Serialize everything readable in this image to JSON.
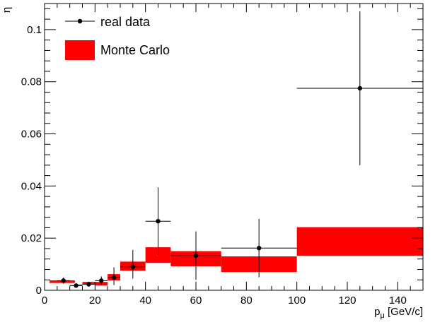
{
  "chart_data": {
    "type": "scatter",
    "title": "",
    "xlabel_main": "p",
    "xlabel_sub": "μ",
    "xlabel_unit": " [GeV/c]",
    "ylabel": "η",
    "xlim": [
      0,
      150
    ],
    "ylim": [
      0,
      0.11
    ],
    "x_ticks": [
      0,
      20,
      40,
      60,
      80,
      100,
      120,
      140
    ],
    "y_ticks": [
      0,
      0.02,
      0.04,
      0.06,
      0.08,
      0.1
    ],
    "y_tick_labels": [
      "0",
      "0.02",
      "0.04",
      "0.06",
      "0.08",
      "0.1"
    ],
    "grid": false,
    "legend_position": "top-left",
    "legend": {
      "data_label": "real data",
      "mc_label": "Monte Carlo"
    },
    "colors": {
      "mc_fill": "#ff0000",
      "data_marker": "#000000"
    },
    "series": [
      {
        "name": "real data",
        "kind": "points_with_errors",
        "points": [
          {
            "x": 7.5,
            "xerr": 2.5,
            "y": 0.0037,
            "yerr_low": 0.0012,
            "yerr_high": 0.0012
          },
          {
            "x": 12.5,
            "xerr": 2.5,
            "y": 0.0018,
            "yerr_low": 0.0008,
            "yerr_high": 0.0008
          },
          {
            "x": 17.5,
            "xerr": 2.5,
            "y": 0.0023,
            "yerr_low": 0.0009,
            "yerr_high": 0.0009
          },
          {
            "x": 22.5,
            "xerr": 2.5,
            "y": 0.0037,
            "yerr_low": 0.0016,
            "yerr_high": 0.0016
          },
          {
            "x": 27.5,
            "xerr": 2.5,
            "y": 0.0048,
            "yerr_low": 0.0028,
            "yerr_high": 0.004
          },
          {
            "x": 35,
            "xerr": 5,
            "y": 0.009,
            "yerr_low": 0.0045,
            "yerr_high": 0.0065
          },
          {
            "x": 45,
            "xerr": 5,
            "y": 0.0265,
            "yerr_low": 0.013,
            "yerr_high": 0.013
          },
          {
            "x": 60,
            "xerr": 10,
            "y": 0.0133,
            "yerr_low": 0.0093,
            "yerr_high": 0.0093
          },
          {
            "x": 85,
            "xerr": 15,
            "y": 0.0162,
            "yerr_low": 0.0112,
            "yerr_high": 0.0112
          },
          {
            "x": 125,
            "xerr": 25,
            "y": 0.0775,
            "yerr_low": 0.0295,
            "yerr_high": 0.0295
          }
        ]
      },
      {
        "name": "Monte Carlo",
        "kind": "error_bands",
        "bins": [
          {
            "x_low": 2,
            "x_high": 12,
            "y_low": 0.0028,
            "y_high": 0.0038
          },
          {
            "x_low": 12,
            "x_high": 15,
            "y_low": 0.0018,
            "y_high": 0.0022
          },
          {
            "x_low": 15,
            "x_high": 20,
            "y_low": 0.0022,
            "y_high": 0.0032
          },
          {
            "x_low": 20,
            "x_high": 25,
            "y_low": 0.0018,
            "y_high": 0.0032
          },
          {
            "x_low": 25,
            "x_high": 30,
            "y_low": 0.0038,
            "y_high": 0.0062
          },
          {
            "x_low": 30,
            "x_high": 40,
            "y_low": 0.0075,
            "y_high": 0.011
          },
          {
            "x_low": 40,
            "x_high": 50,
            "y_low": 0.0105,
            "y_high": 0.0165
          },
          {
            "x_low": 50,
            "x_high": 70,
            "y_low": 0.0092,
            "y_high": 0.015
          },
          {
            "x_low": 70,
            "x_high": 100,
            "y_low": 0.007,
            "y_high": 0.013
          },
          {
            "x_low": 100,
            "x_high": 150,
            "y_low": 0.0132,
            "y_high": 0.0242
          }
        ]
      }
    ]
  }
}
